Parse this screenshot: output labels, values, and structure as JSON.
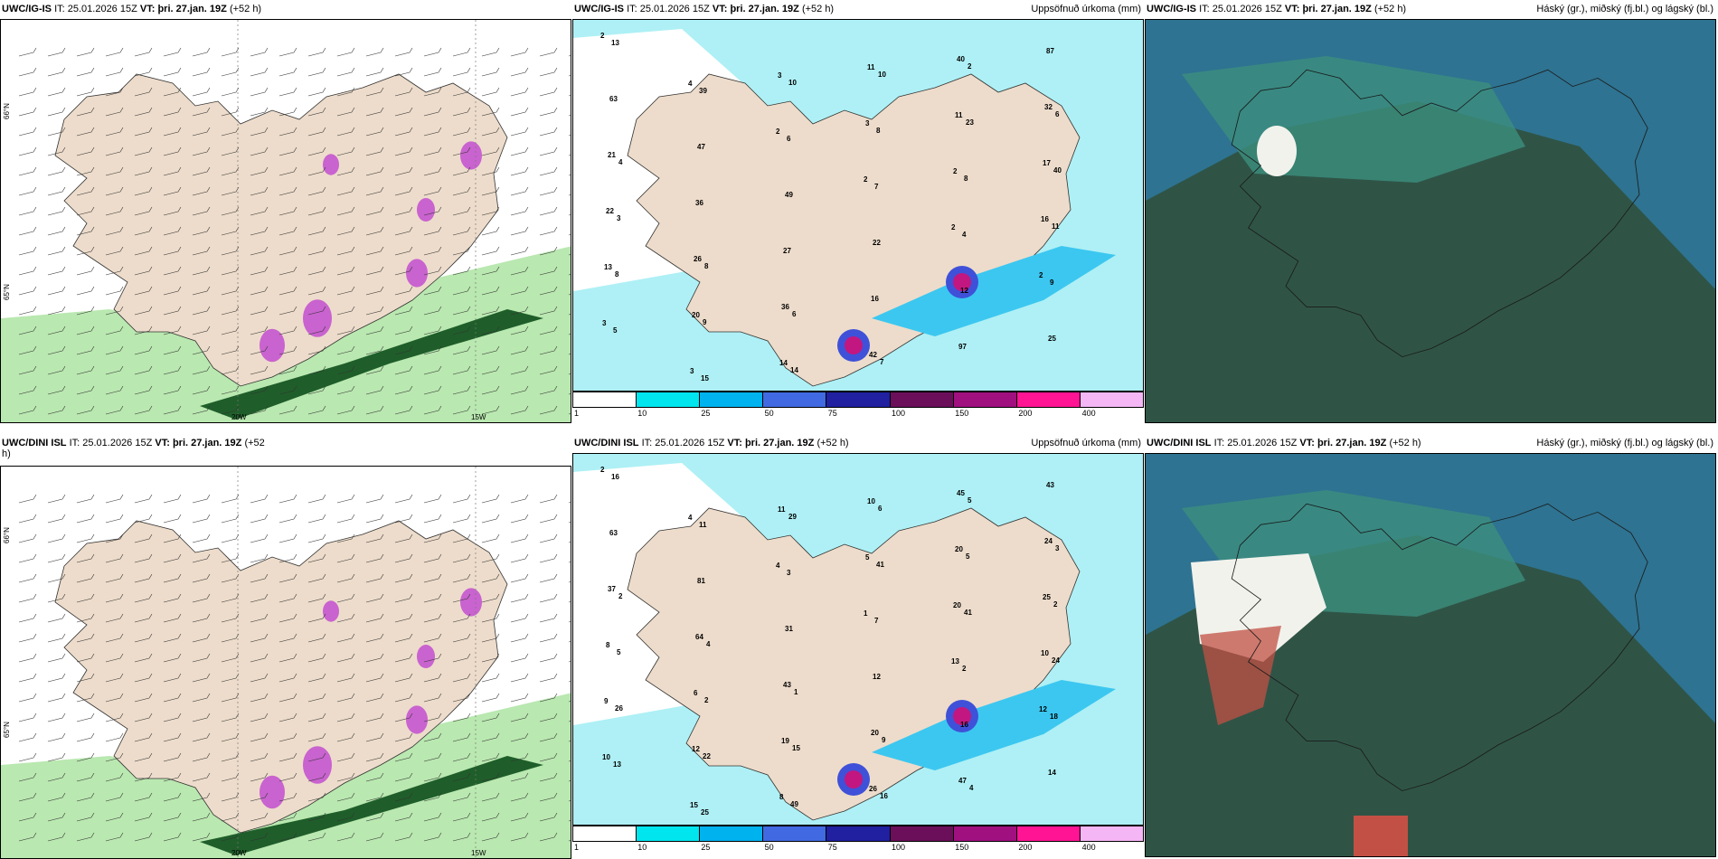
{
  "panels": [
    {
      "id": "p1",
      "model": "UWC/IG-IS",
      "it_label": "IT:",
      "it": "25.01.2026 15Z",
      "vt_label": "VT:",
      "vt": "þri. 27.jan. 19Z",
      "lead": "(+52 h)",
      "right": ""
    },
    {
      "id": "p2",
      "model": "UWC/IG-IS",
      "it_label": "IT:",
      "it": "25.01.2026 15Z",
      "vt_label": "VT:",
      "vt": "þri. 27.jan. 19Z",
      "lead": "(+52 h)",
      "right": "Uppsöfnuð úrkoma (mm)"
    },
    {
      "id": "p3",
      "model": "UWC/IG-IS",
      "it_label": "IT:",
      "it": "25.01.2026 15Z",
      "vt_label": "VT:",
      "vt": "þri. 27.jan. 19Z",
      "lead": "(+52 h)",
      "right": "Háský (gr.), miðský (fj.bl.) og lágský (bl.)"
    },
    {
      "id": "p4",
      "model": "UWC/DINI ISL",
      "it_label": "IT:",
      "it": "25.01.2026 15Z",
      "vt_label": "VT:",
      "vt": "þri. 27.jan. 19Z",
      "lead": "(+52",
      "lead2": "h)",
      "right": ""
    },
    {
      "id": "p5",
      "model": "UWC/DINI ISL",
      "it_label": "IT:",
      "it": "25.01.2026 15Z",
      "vt_label": "VT:",
      "vt": "þri. 27.jan. 19Z",
      "lead": "(+52 h)",
      "right": "Uppsöfnuð úrkoma (mm)"
    },
    {
      "id": "p6",
      "model": "UWC/DINI ISL",
      "it_label": "IT:",
      "it": "25.01.2026 15Z",
      "vt_label": "VT:",
      "vt": "þri. 27.jan. 19Z",
      "lead": "(+52 h)",
      "right": "Háský (gr.), miðský (fj.bl.) og lágský (bl.)"
    }
  ],
  "axis_labels": {
    "lat_66": "66°N",
    "lat_65": "65°N",
    "lon_20": "20W",
    "lon_15": "15W"
  },
  "colorbar": {
    "ticks": [
      "1",
      "10",
      "25",
      "50",
      "75",
      "100",
      "150",
      "200",
      "400"
    ],
    "colors": [
      "#ffffff",
      "#00e5ee",
      "#00b2ee",
      "#4169e1",
      "#2020a0",
      "#6b0f5a",
      "#a0107f",
      "#ff1493",
      "#f5b6f5"
    ]
  },
  "precip_labels_top": [
    "2",
    "4",
    "2",
    "2",
    "2",
    "2",
    "3",
    "3",
    "3",
    "3",
    "2",
    "16",
    "13",
    "20",
    "14",
    "11",
    "11",
    "17",
    "22",
    "26",
    "36",
    "42",
    "40",
    "32",
    "21",
    "36",
    "27",
    "16",
    "97",
    "87",
    "63",
    "47",
    "49",
    "22",
    "12",
    "25",
    "13",
    "39",
    "6",
    "7",
    "4",
    "9",
    "5",
    "15",
    "10",
    "8",
    "8",
    "11",
    "8",
    "9",
    "14",
    "10",
    "23",
    "40",
    "3",
    "8",
    "6",
    "7",
    "2",
    "6",
    "4"
  ],
  "precip_labels_bottom": [
    "2",
    "4",
    "4",
    "1",
    "13",
    "12",
    "10",
    "15",
    "11",
    "5",
    "20",
    "10",
    "9",
    "12",
    "8",
    "10",
    "20",
    "25",
    "8",
    "6",
    "19",
    "26",
    "45",
    "24",
    "37",
    "64",
    "43",
    "20",
    "47",
    "43",
    "63",
    "81",
    "31",
    "12",
    "16",
    "14",
    "16",
    "11",
    "3",
    "7",
    "2",
    "18",
    "13",
    "25",
    "29",
    "41",
    "41",
    "24",
    "26",
    "22",
    "49",
    "6",
    "5",
    "2",
    "5",
    "2",
    "15",
    "16",
    "5",
    "3",
    "2",
    "4",
    "1",
    "9",
    "4"
  ],
  "legend_colors": {
    "land": "#eddccb",
    "sea": "#ffffff",
    "precip_light": "#aef0f5",
    "precip_mid": "#3cc7f0",
    "snow_heavy": "#c24ed0",
    "rain_green": "#b9e8b0",
    "rain_dark": "#1f5e2a",
    "cloud_dark": "#2f5446",
    "cloud_teal": "#2e7391",
    "cloud_mid": "#3c8f7e",
    "cloud_white": "#f2f2ec",
    "cloud_red": "#c25044"
  }
}
